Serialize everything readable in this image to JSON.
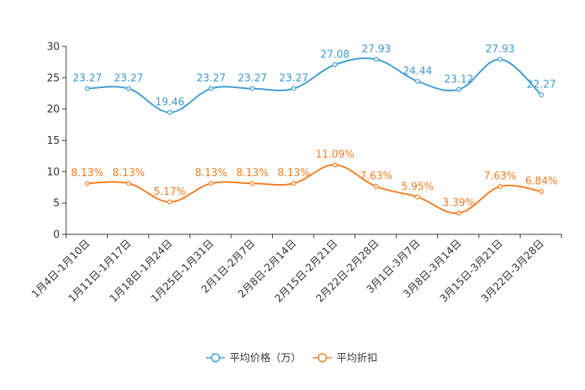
{
  "chart_data": {
    "type": "line",
    "categories": [
      "1月4日-1月10日",
      "1月11日-1月17日",
      "1月18日-1月24日",
      "1月25日-1月31日",
      "2月1日-2月7日",
      "2月8日-2月14日",
      "2月15日-2月21日",
      "2月22日-2月28日",
      "3月1日-3月7日",
      "3月8日-3月14日",
      "3月15日-3月21日",
      "3月22日-3月28日"
    ],
    "series": [
      {
        "name": "平均价格（万）",
        "color": "#3d9cd2",
        "values": [
          23.27,
          23.27,
          19.46,
          23.27,
          23.27,
          23.27,
          27.08,
          27.93,
          24.44,
          23.12,
          27.93,
          22.27
        ],
        "labels": [
          "23.27",
          "23.27",
          "19.46",
          "23.27",
          "23.27",
          "23.27",
          "27.08",
          "27.93",
          "24.44",
          "23.12",
          "27.93",
          "22.27"
        ]
      },
      {
        "name": "平均折扣",
        "color": "#f57c1f",
        "values": [
          8.13,
          8.13,
          5.17,
          8.13,
          8.13,
          8.13,
          11.09,
          7.63,
          5.95,
          3.39,
          7.63,
          6.84
        ],
        "labels": [
          "8.13%",
          "8.13%",
          "5.17%",
          "8.13%",
          "8.13%",
          "8.13%",
          "11.09%",
          "7.63%",
          "5.95%",
          "3.39%",
          "7.63%",
          "6.84%"
        ]
      }
    ],
    "yticks": [
      "0",
      "5",
      "10",
      "15",
      "20",
      "25",
      "30"
    ],
    "ylim": [
      0,
      30
    ],
    "title": "",
    "xlabel": "",
    "ylabel": "",
    "grid": false,
    "legend": "bottom-center"
  }
}
